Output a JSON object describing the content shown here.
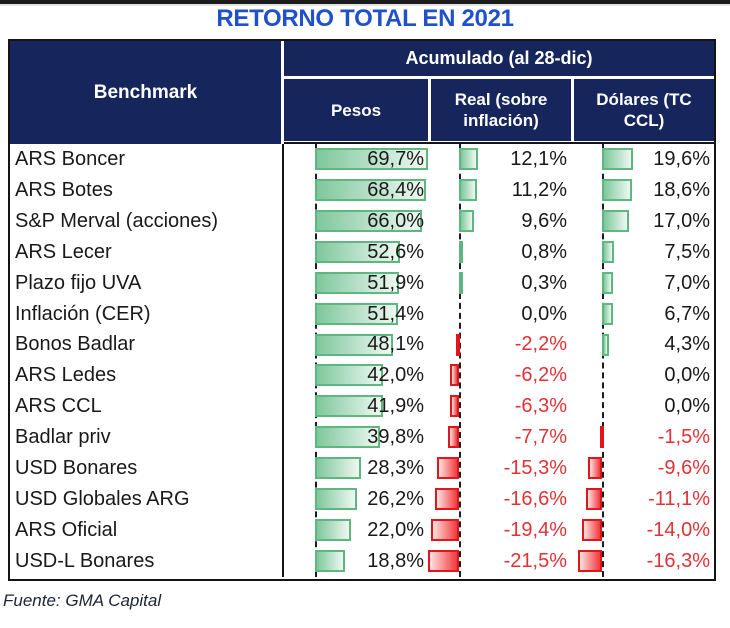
{
  "page": {
    "title": "RETORNO TOTAL EN 2021",
    "source": "Fuente: GMA Capital"
  },
  "table": {
    "row_header": "Benchmark",
    "group_header": "Acumulado (al 28-dic)",
    "columns": [
      "Pesos",
      "Real (sobre inflación)",
      "Dólares (TC CCL)"
    ]
  },
  "colors": {
    "header_navy": "#16265C",
    "title_blue": "#2150CB",
    "positive_bar_border": "#5EB780",
    "positive_bar_fill": "#7FC79C",
    "negative_bar_border": "#E1161D",
    "negative_bar_fill": "#F2383E",
    "negative_text": "#E03237",
    "text": "#191919"
  },
  "chart_data": {
    "type": "table",
    "title": "RETORNO TOTAL EN 2021",
    "group_header": "Acumulado (al 28-dic)",
    "row_header": "Benchmark",
    "columns": [
      "Pesos",
      "Real (sobre inflación)",
      "Dólares (TC CCL)"
    ],
    "unit": "%",
    "decimal_separator": ",",
    "bar_axis": {
      "max_positive": 69.7,
      "min_negative": -21.5,
      "axis_style": "dashed",
      "positive_color": "green",
      "negative_color": "red"
    },
    "rows": [
      {
        "label": "ARS Boncer",
        "values": [
          69.7,
          12.1,
          19.6
        ],
        "display": [
          "69,7%",
          "12,1%",
          "19,6%"
        ]
      },
      {
        "label": "ARS Botes",
        "values": [
          68.4,
          11.2,
          18.6
        ],
        "display": [
          "68,4%",
          "11,2%",
          "18,6%"
        ]
      },
      {
        "label": "S&P Merval (acciones)",
        "values": [
          66.0,
          9.6,
          17.0
        ],
        "display": [
          "66,0%",
          "9,6%",
          "17,0%"
        ]
      },
      {
        "label": "ARS Lecer",
        "values": [
          52.6,
          0.8,
          7.5
        ],
        "display": [
          "52,6%",
          "0,8%",
          "7,5%"
        ]
      },
      {
        "label": "Plazo fijo UVA",
        "values": [
          51.9,
          0.3,
          7.0
        ],
        "display": [
          "51,9%",
          "0,3%",
          "7,0%"
        ]
      },
      {
        "label": "Inflación (CER)",
        "values": [
          51.4,
          0.0,
          6.7
        ],
        "display": [
          "51,4%",
          "0,0%",
          "6,7%"
        ]
      },
      {
        "label": "Bonos Badlar",
        "values": [
          48.1,
          -2.2,
          4.3
        ],
        "display": [
          "48,1%",
          "-2,2%",
          "4,3%"
        ]
      },
      {
        "label": "ARS Ledes",
        "values": [
          42.0,
          -6.2,
          0.0
        ],
        "display": [
          "42,0%",
          "-6,2%",
          "0,0%"
        ]
      },
      {
        "label": "ARS CCL",
        "values": [
          41.9,
          -6.3,
          0.0
        ],
        "display": [
          "41,9%",
          "-6,3%",
          "0,0%"
        ]
      },
      {
        "label": "Badlar priv",
        "values": [
          39.8,
          -7.7,
          -1.5
        ],
        "display": [
          "39,8%",
          "-7,7%",
          "-1,5%"
        ]
      },
      {
        "label": "USD Bonares",
        "values": [
          28.3,
          -15.3,
          -9.6
        ],
        "display": [
          "28,3%",
          "-15,3%",
          "-9,6%"
        ]
      },
      {
        "label": "USD Globales ARG",
        "values": [
          26.2,
          -16.6,
          -11.1
        ],
        "display": [
          "26,2%",
          "-16,6%",
          "-11,1%"
        ]
      },
      {
        "label": "ARS Oficial",
        "values": [
          22.0,
          -19.4,
          -14.0
        ],
        "display": [
          "22,0%",
          "-19,4%",
          "-14,0%"
        ]
      },
      {
        "label": "USD-L Bonares",
        "values": [
          18.8,
          -21.5,
          -16.3
        ],
        "display": [
          "18,8%",
          "-21,5%",
          "-16,3%"
        ]
      }
    ]
  }
}
